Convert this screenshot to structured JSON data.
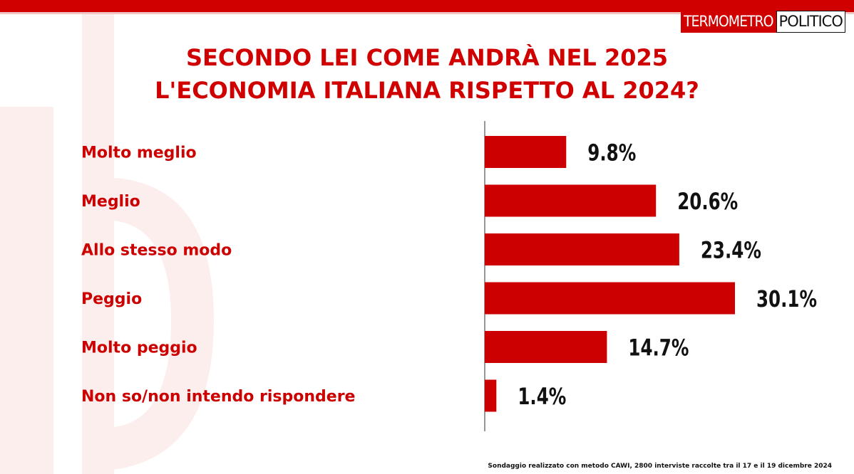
{
  "brand": {
    "logo_red": "TERMOMETRO",
    "logo_white": "POLITICO",
    "accent": "#d10000"
  },
  "title_lines": [
    "SECONDO LEI COME ANDRÀ NEL 2025",
    "L'ECONOMIA ITALIANA RISPETTO AL 2024?"
  ],
  "chart_data": {
    "type": "bar",
    "orientation": "horizontal",
    "categories": [
      "Molto meglio",
      "Meglio",
      "Allo stesso modo",
      "Peggio",
      "Molto peggio",
      "Non so/non intendo rispondere"
    ],
    "values": [
      9.8,
      20.6,
      23.4,
      30.1,
      14.7,
      1.4
    ],
    "value_labels": [
      "9.8%",
      "20.6%",
      "23.4%",
      "30.1%",
      "14.7%",
      "1.4%"
    ],
    "xlim": [
      0,
      30.1
    ],
    "grid": false,
    "color": "#cc0000"
  },
  "footnote": "Sondaggio realizzato con metodo CAWI, 2800 interviste raccolte tra il 17 e il 19 dicembre 2024"
}
